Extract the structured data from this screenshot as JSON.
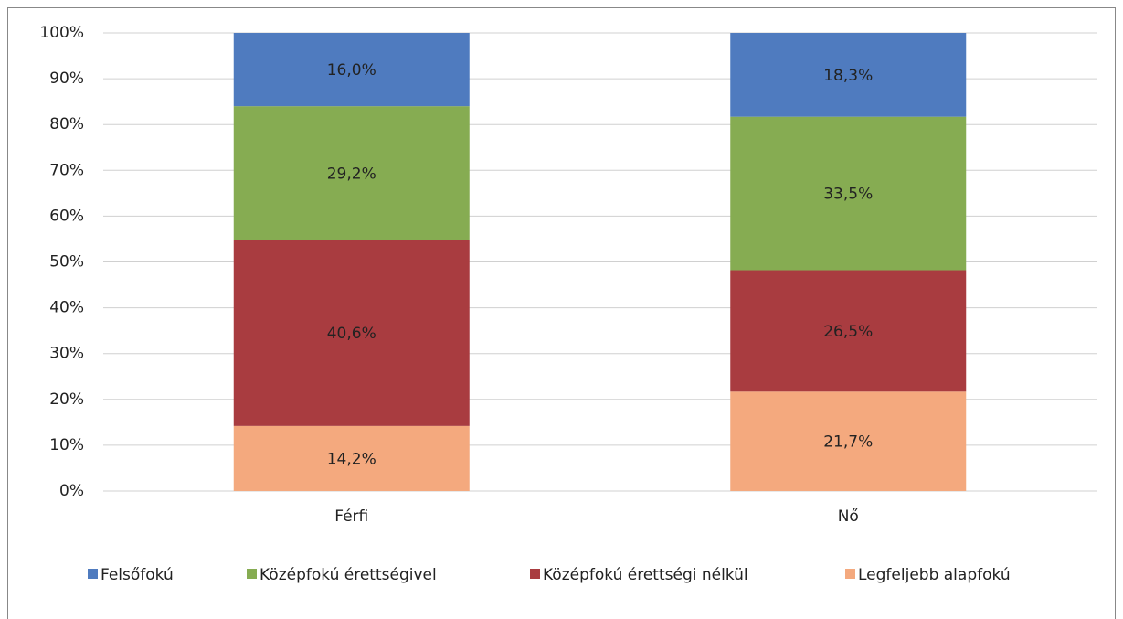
{
  "chart_data": {
    "type": "bar",
    "stacked": true,
    "categories": [
      "Férfi",
      "Nő"
    ],
    "series": [
      {
        "name": "Felsőfokú",
        "color": "#4f7bbf",
        "values": [
          16.0,
          18.3
        ],
        "value_labels": [
          "16,0%",
          "18,3%"
        ]
      },
      {
        "name": "Középfokú érettségivel",
        "color": "#86ac52",
        "values": [
          29.2,
          33.5
        ],
        "value_labels": [
          "29,2%",
          "33,5%"
        ]
      },
      {
        "name": "Középfokú érettségi nélkül",
        "color": "#a93c40",
        "values": [
          40.6,
          26.5
        ],
        "value_labels": [
          "40,6%",
          "26,5%"
        ]
      },
      {
        "name": "Legfeljebb alapfokú",
        "color": "#f4a97e",
        "values": [
          14.2,
          21.7
        ],
        "value_labels": [
          "14,2%",
          "21,7%"
        ]
      }
    ],
    "ylim": [
      0,
      100
    ],
    "yticks": [
      {
        "value": 0,
        "label": "0%"
      },
      {
        "value": 10,
        "label": "10%"
      },
      {
        "value": 20,
        "label": "20%"
      },
      {
        "value": 30,
        "label": "30%"
      },
      {
        "value": 40,
        "label": "40%"
      },
      {
        "value": 50,
        "label": "50%"
      },
      {
        "value": 60,
        "label": "60%"
      },
      {
        "value": 70,
        "label": "70%"
      },
      {
        "value": 80,
        "label": "80%"
      },
      {
        "value": 90,
        "label": "90%"
      },
      {
        "value": 100,
        "label": "100%"
      }
    ],
    "grid": true,
    "legend": "bottom"
  }
}
